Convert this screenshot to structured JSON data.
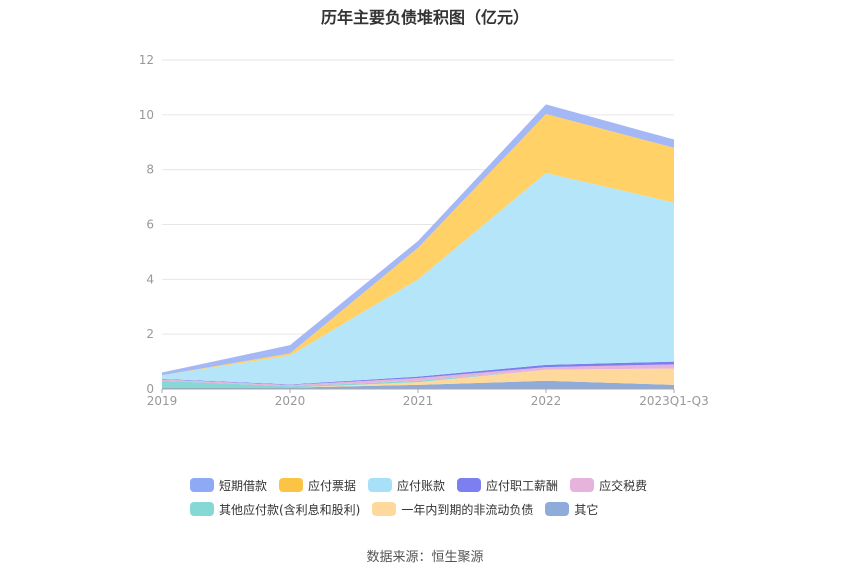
{
  "chart_data": {
    "type": "area",
    "stacked": true,
    "title": "历年主要负债堆积图（亿元）",
    "categories": [
      "2019",
      "2020",
      "2021",
      "2022",
      "2023Q1-Q3"
    ],
    "ylim": [
      0,
      12
    ],
    "yticks": [
      0,
      2,
      4,
      6,
      8,
      10,
      12
    ],
    "grid": true,
    "legend_position": "bottom",
    "series": [
      {
        "name": "其它",
        "color": "#8fabd9",
        "values": [
          0.05,
          0.05,
          0.15,
          0.3,
          0.15
        ]
      },
      {
        "name": "一年内到期的非流动负债",
        "color": "#ffd99b",
        "values": [
          0.0,
          0.0,
          0.1,
          0.4,
          0.6
        ]
      },
      {
        "name": "其他应付款(含利息和股利)",
        "color": "#86d8d5",
        "values": [
          0.25,
          0.05,
          0.05,
          0.0,
          0.0
        ]
      },
      {
        "name": "应交税费",
        "color": "#e6b3dc",
        "values": [
          0.05,
          0.05,
          0.1,
          0.1,
          0.15
        ]
      },
      {
        "name": "应付职工薪酬",
        "color": "#7b7ff0",
        "values": [
          0.02,
          0.02,
          0.05,
          0.08,
          0.1
        ]
      },
      {
        "name": "应付账款",
        "color": "#b5e5f8",
        "values": [
          0.13,
          1.05,
          3.55,
          7.0,
          5.8
        ]
      },
      {
        "name": "应付票据",
        "color": "#ffd167",
        "values": [
          0.0,
          0.08,
          1.15,
          2.15,
          2.0
        ]
      },
      {
        "name": "短期借款",
        "color": "#a4b8f5",
        "values": [
          0.1,
          0.3,
          0.25,
          0.35,
          0.3
        ]
      }
    ]
  },
  "legend": {
    "row1": [
      {
        "name": "短期借款",
        "color": "#8faaf5"
      },
      {
        "name": "应付票据",
        "color": "#fcc444"
      },
      {
        "name": "应付账款",
        "color": "#a8e0f8"
      },
      {
        "name": "应付职工薪酬",
        "color": "#7b7ff0"
      },
      {
        "name": "应交税费",
        "color": "#e6b3dc"
      }
    ],
    "row2": [
      {
        "name": "其他应付款(含利息和股利)",
        "color": "#86d8d5"
      },
      {
        "name": "一年内到期的非流动负债",
        "color": "#ffd99b"
      },
      {
        "name": "其它",
        "color": "#8fabd9"
      }
    ]
  },
  "source": "数据来源：恒生聚源"
}
